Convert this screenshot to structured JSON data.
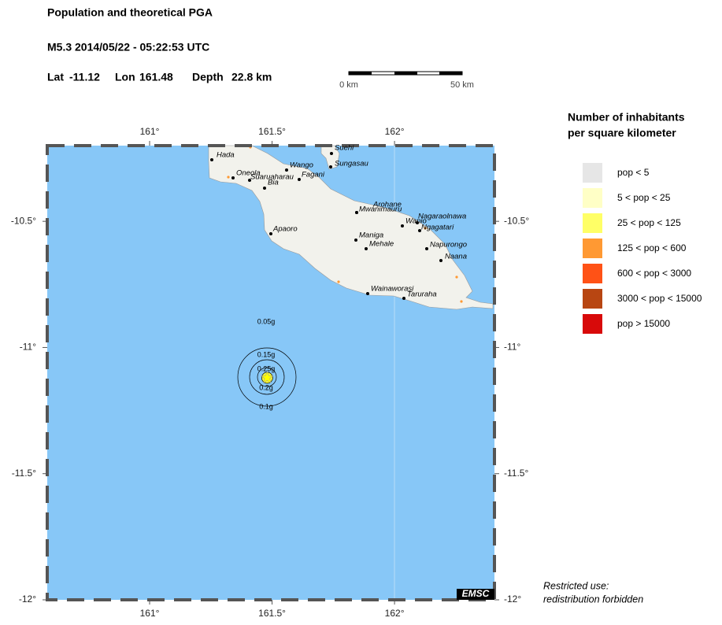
{
  "header": {
    "title": "Population and theoretical PGA",
    "event": "M5.3  2014/05/22 - 05:22:53 UTC",
    "lat_label": "Lat",
    "lat": -11.12,
    "lon_label": "Lon",
    "lon": 161.48,
    "depth_label": "Depth",
    "depth": "22.8 km"
  },
  "scale_bar": {
    "start": "0 km",
    "end": "50 km"
  },
  "map": {
    "lonlim": [
      160.582,
      162.408
    ],
    "latlim": [
      -12,
      -10.2
    ],
    "lonticks": [
      {
        "value": 161,
        "label": "161°"
      },
      {
        "value": 161.5,
        "label": "161.5°"
      },
      {
        "value": 162,
        "label": "162°"
      }
    ],
    "latticks": [
      {
        "value": -10.5,
        "label": "-10.5°"
      },
      {
        "value": -11,
        "label": "-11°"
      },
      {
        "value": -11.5,
        "label": "-11.5°"
      },
      {
        "value": -12,
        "label": "-12°"
      }
    ],
    "places": [
      "Hada",
      "Oneola",
      "Suaruaharau",
      "Bia",
      "Wango",
      "Fagani",
      "Suehi",
      "Sungasau",
      "Arohane",
      "Mwanimauru",
      "Nagaraolnawa",
      "Wanio",
      "Ngagatari",
      "Apaoro",
      "Maniga",
      "Mehale",
      "Napurongo",
      "Naana",
      "Wainaworasi",
      "Taruraha"
    ],
    "pga_labels": [
      "0.05g",
      "0.15g",
      "0.25g",
      "0.2g",
      "0.1g"
    ],
    "credit": "EMSC"
  },
  "legend": {
    "title": [
      "Number of inhabitants",
      "per square kilometer"
    ],
    "items": [
      {
        "label": "pop < 5",
        "color": "#e6e6e6"
      },
      {
        "label": "5 < pop < 25",
        "color": "#ffffc6"
      },
      {
        "label": "25 < pop < 125",
        "color": "#ffff66"
      },
      {
        "label": "125 < pop < 600",
        "color": "#ff9933"
      },
      {
        "label": "600 < pop < 3000",
        "color": "#ff5216"
      },
      {
        "label": "3000 < pop < 15000",
        "color": "#b84612"
      },
      {
        "label": "pop > 15000",
        "color": "#d80a0a"
      }
    ]
  },
  "note": [
    "Restricted use:",
    "redistribution forbidden"
  ]
}
